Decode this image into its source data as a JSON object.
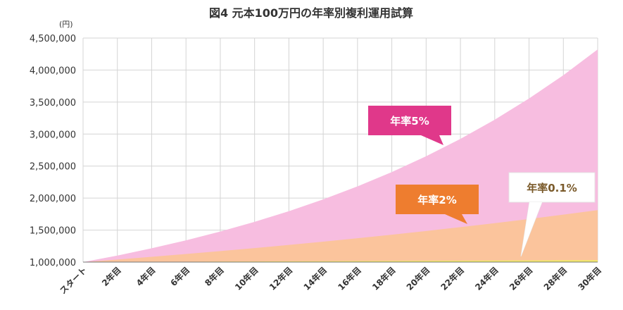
{
  "chart_data": {
    "type": "area",
    "title": "図4 元本100万円の年率別複利運用試算",
    "y_unit": "(円)",
    "ylim": [
      1000000,
      4500000
    ],
    "y_ticks": [
      1000000,
      1500000,
      2000000,
      2500000,
      3000000,
      3500000,
      4000000,
      4500000
    ],
    "y_tick_labels": [
      "1,000,000",
      "1,500,000",
      "2,000,000",
      "2,500,000",
      "3,000,000",
      "3,500,000",
      "4,000,000",
      "4,500,000"
    ],
    "x": [
      0,
      2,
      4,
      6,
      8,
      10,
      12,
      14,
      16,
      18,
      20,
      22,
      24,
      26,
      28,
      30
    ],
    "x_labels": [
      "スタート",
      "2年目",
      "4年目",
      "6年目",
      "8年目",
      "10年目",
      "12年目",
      "14年目",
      "16年目",
      "18年目",
      "20年目",
      "22年目",
      "24年目",
      "26年目",
      "28年目",
      "30年目"
    ],
    "grid": true,
    "series": [
      {
        "name": "年率5%",
        "color": "#f7bde0",
        "label_bg": "#e0388a",
        "label_color": "#ffffff",
        "values": [
          1000000,
          1102500,
          1215506,
          1340096,
          1477455,
          1628895,
          1795856,
          1979932,
          2182875,
          2406619,
          2653298,
          2925261,
          3225100,
          3555673,
          3920129,
          4321942
        ]
      },
      {
        "name": "年率2%",
        "color": "#fbc49c",
        "label_bg": "#ee7d2f",
        "label_color": "#ffffff",
        "values": [
          1000000,
          1040400,
          1082432,
          1126162,
          1171659,
          1218994,
          1268242,
          1319479,
          1372786,
          1428246,
          1485947,
          1545980,
          1608437,
          1673418,
          1741024,
          1811362
        ]
      },
      {
        "name": "年率0.1%",
        "color": "#f2ea6a",
        "label_bg": "#ffffff",
        "label_color": "#7a5a2a",
        "values": [
          1000000,
          1002001,
          1004006,
          1006015,
          1008028,
          1010045,
          1012066,
          1014091,
          1016121,
          1018154,
          1020191,
          1022233,
          1024278,
          1026328,
          1028381,
          1030439
        ]
      }
    ]
  }
}
